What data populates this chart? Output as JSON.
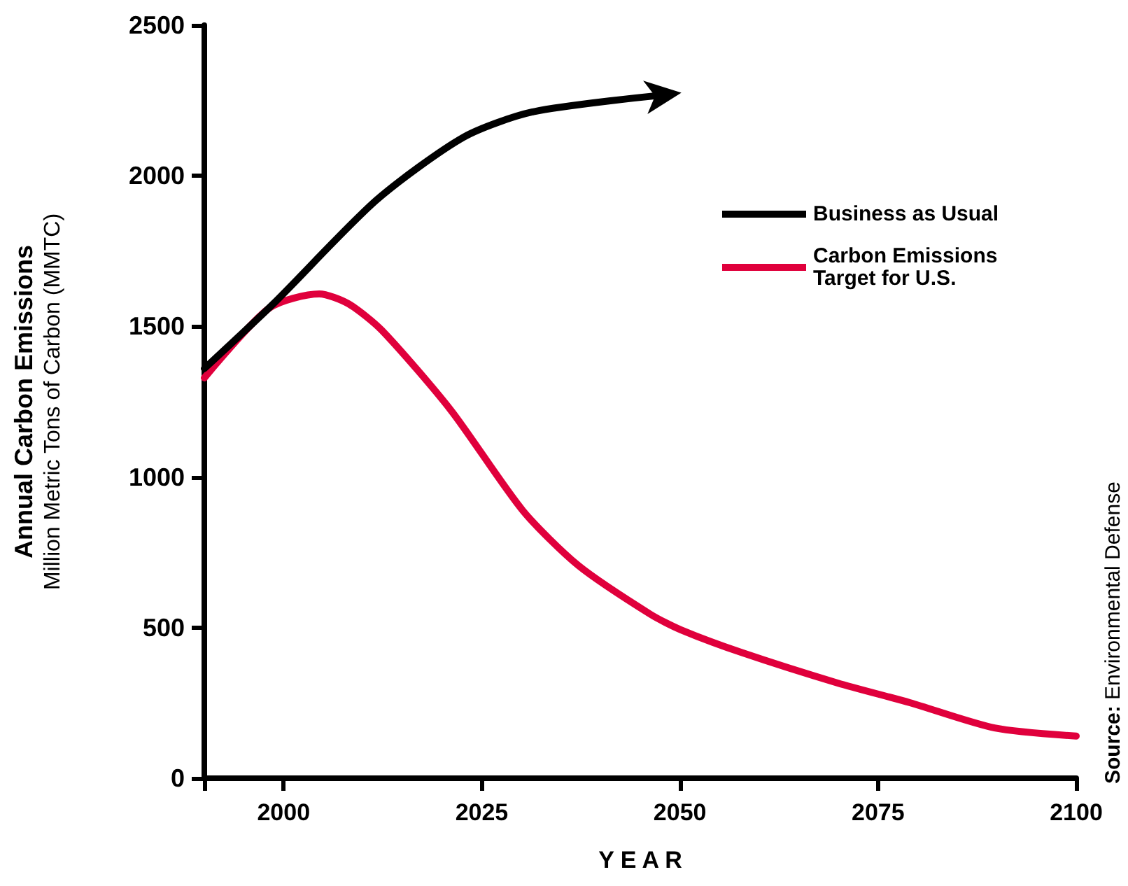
{
  "chart_data": {
    "type": "line",
    "xlabel": "Y E A R",
    "ylabel": "Annual Carbon Emissions\nMillion Metric Tons of Carbon (MMTC)",
    "annotations": [
      "Source: Environmental Defense"
    ],
    "xlim": [
      1990,
      2100
    ],
    "xticks": [
      {
        "value": 1990,
        "label": null
      },
      2000,
      2025,
      2050,
      2075,
      2100
    ],
    "ylim": [
      0,
      2500
    ],
    "yticks": [
      0,
      500,
      1000,
      1500,
      2000,
      2500
    ],
    "grid": false,
    "legend": "top right",
    "marker": "none",
    "line_style": "solid",
    "series": [
      {
        "name": "Business as Usual",
        "color": "#000000",
        "x": [
          1990,
          1998.7,
          2011.7,
          2022.7,
          2031.4,
          2047.7
        ],
        "values": [
          1360,
          1575,
          1919,
          2128,
          2212,
          2268
        ]
      },
      {
        "name": "Carbon Emissions Target for U.S.",
        "color": "#e0003c",
        "x": [
          1990,
          1998.2,
          2004.5,
          2008.2,
          2012.4,
          2021.1,
          2030.2,
          2037.2,
          2046.3,
          2050.1,
          2057.7,
          2069.9,
          2079,
          2089.7,
          2100
        ],
        "values": [
          1329,
          1561,
          1608,
          1575,
          1487,
          1222,
          888,
          706,
          544,
          493,
          418,
          316,
          251,
          167,
          140
        ]
      }
    ]
  }
}
